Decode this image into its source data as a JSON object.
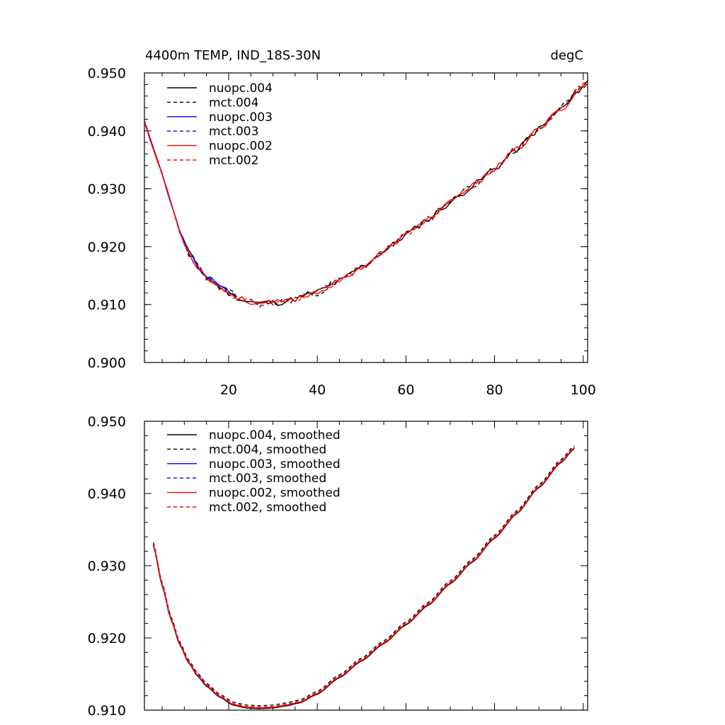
{
  "chart_data": [
    {
      "type": "line",
      "title": "4400m TEMP, IND_18S-30N",
      "units": "degC",
      "xlim": [
        1,
        101
      ],
      "ylim": [
        0.9,
        0.95
      ],
      "xticks": [
        20,
        40,
        60,
        80,
        100
      ],
      "xtick_labels": [
        "20",
        "40",
        "60",
        "80",
        "100"
      ],
      "yticks": [
        0.9,
        0.91,
        0.92,
        0.93,
        0.94,
        0.95
      ],
      "ytick_labels": [
        "0.900",
        "0.910",
        "0.920",
        "0.930",
        "0.940",
        "0.950"
      ],
      "legend_position": "top-left",
      "series": [
        {
          "name": "nuopc.004",
          "color": "#000000",
          "dash": "solid",
          "x_start": 1,
          "x_end": 101,
          "noise": 0.0006,
          "seed": 11
        },
        {
          "name": "mct.004",
          "color": "#000000",
          "dash": "dashed",
          "x_start": 1,
          "x_end": 101,
          "noise": 0.0007,
          "seed": 23
        },
        {
          "name": "nuopc.003",
          "color": "#0000ff",
          "dash": "solid",
          "x_start": 1,
          "x_end": 21,
          "noise": 0.0005,
          "seed": 37
        },
        {
          "name": "mct.003",
          "color": "#0000ff",
          "dash": "dashed",
          "x_start": 1,
          "x_end": 21,
          "noise": 0.0005,
          "seed": 41
        },
        {
          "name": "nuopc.002",
          "color": "#ff0000",
          "dash": "solid",
          "x_start": 1,
          "x_end": 101,
          "noise": 0.0005,
          "seed": 53
        },
        {
          "name": "mct.002",
          "color": "#ff0000",
          "dash": "dashed",
          "x_start": 1,
          "x_end": 101,
          "noise": 0.0005,
          "seed": 67
        }
      ],
      "curve_keypoints": {
        "x": [
          1,
          3,
          5,
          7,
          9,
          11,
          13,
          15,
          18,
          21,
          24,
          27,
          30,
          33,
          36,
          40,
          45,
          50,
          55,
          60,
          65,
          70,
          75,
          80,
          85,
          90,
          95,
          101
        ],
        "y": [
          0.9415,
          0.937,
          0.9325,
          0.9275,
          0.9225,
          0.919,
          0.9165,
          0.9148,
          0.913,
          0.9116,
          0.9106,
          0.9102,
          0.9103,
          0.9106,
          0.9112,
          0.9122,
          0.914,
          0.9165,
          0.9192,
          0.922,
          0.9248,
          0.9276,
          0.9305,
          0.9335,
          0.9368,
          0.9403,
          0.9438,
          0.9485
        ]
      }
    },
    {
      "type": "line",
      "xlim": [
        1,
        101
      ],
      "ylim": [
        0.91,
        0.95
      ],
      "xticks": [
        20,
        40,
        60,
        80,
        100
      ],
      "yticks": [
        0.91,
        0.92,
        0.93,
        0.94,
        0.95
      ],
      "ytick_labels": [
        "0.910",
        "0.920",
        "0.930",
        "0.940",
        "0.950"
      ],
      "legend_position": "top-left",
      "series": [
        {
          "name": "nuopc.004, smoothed",
          "color": "#000000",
          "dash": "solid",
          "x_start": 3,
          "x_end": 98,
          "offset": 0.0
        },
        {
          "name": "mct.004, smoothed",
          "color": "#000000",
          "dash": "dashed",
          "x_start": 3,
          "x_end": 98,
          "offset": 0.0004
        },
        {
          "name": "nuopc.003, smoothed",
          "color": "#0000ff",
          "dash": "solid",
          "x_start": 3,
          "x_end": 18,
          "offset": 0.0001
        },
        {
          "name": "mct.003, smoothed",
          "color": "#0000ff",
          "dash": "dashed",
          "x_start": 3,
          "x_end": 18,
          "offset": 0.0002
        },
        {
          "name": "nuopc.002, smoothed",
          "color": "#ff0000",
          "dash": "solid",
          "x_start": 3,
          "x_end": 98,
          "offset": 0.0001
        },
        {
          "name": "mct.002, smoothed",
          "color": "#ff0000",
          "dash": "dashed",
          "x_start": 3,
          "x_end": 98,
          "offset": 0.0002
        }
      ],
      "curve_keypoints": {
        "x": [
          3,
          5,
          7,
          9,
          11,
          13,
          15,
          18,
          21,
          24,
          27,
          30,
          33,
          36,
          40,
          45,
          50,
          55,
          60,
          65,
          70,
          75,
          80,
          85,
          90,
          95,
          98
        ],
        "y": [
          0.9328,
          0.9272,
          0.9225,
          0.919,
          0.9165,
          0.9147,
          0.9133,
          0.9118,
          0.9107,
          0.9103,
          0.9102,
          0.9103,
          0.9106,
          0.911,
          0.9122,
          0.9145,
          0.9168,
          0.9192,
          0.9218,
          0.9245,
          0.9275,
          0.9305,
          0.9338,
          0.9372,
          0.9408,
          0.9443,
          0.9462
        ]
      }
    }
  ]
}
